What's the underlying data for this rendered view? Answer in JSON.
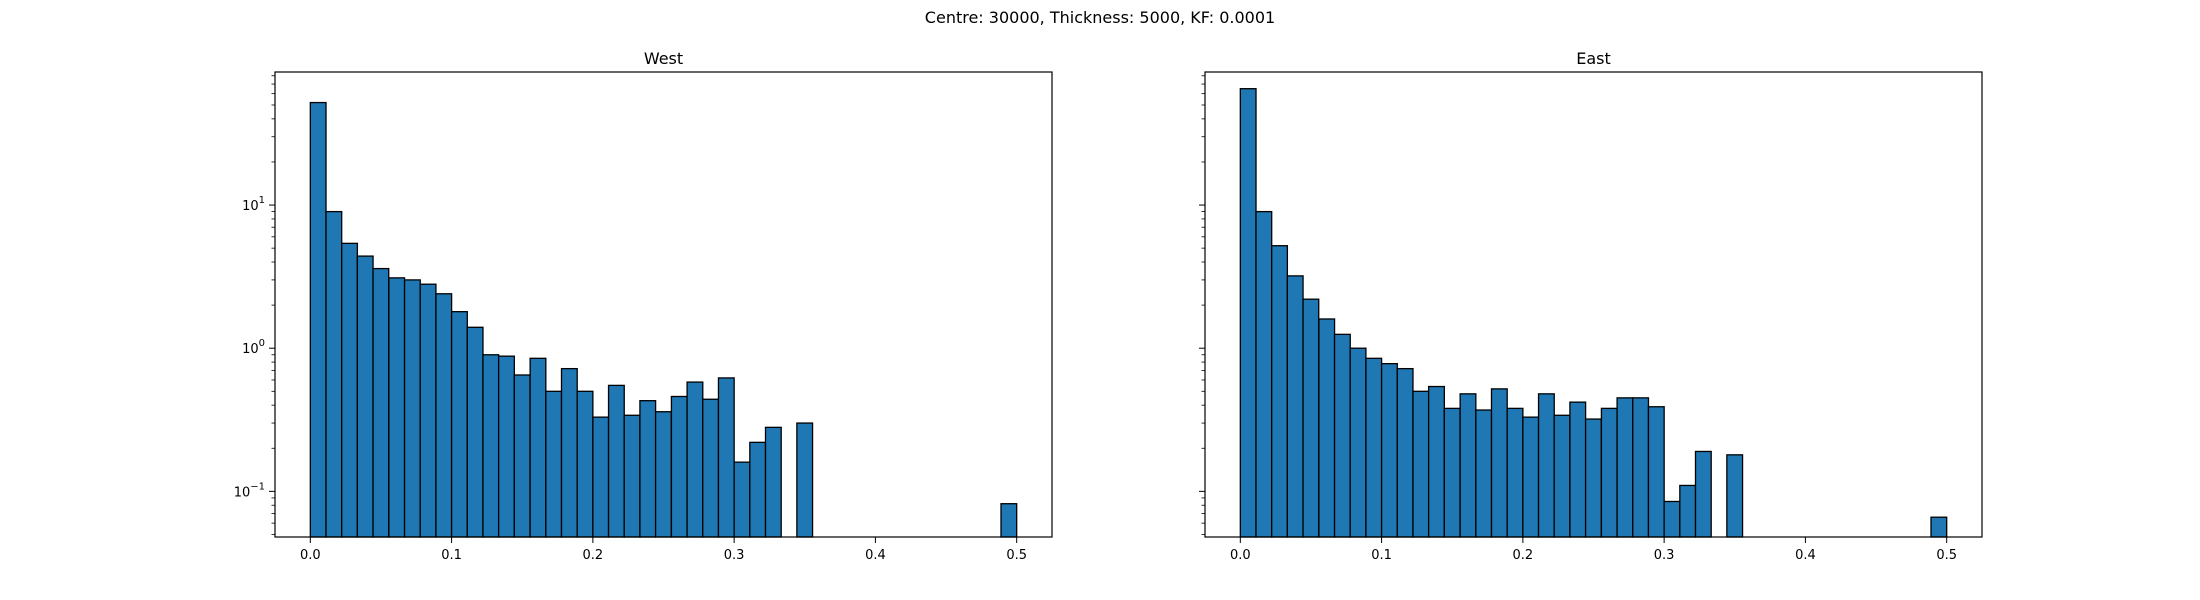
{
  "figure": {
    "suptitle": "Centre: 30000, Thickness: 5000, KF: 0.0001"
  },
  "chart_data": [
    {
      "type": "bar",
      "title": "West",
      "xlabel": "",
      "ylabel": "",
      "yscale": "log",
      "xlim": [
        -0.025,
        0.525
      ],
      "ylim": [
        0.048,
        85
      ],
      "bin_width": 0.01111,
      "x_ticks": [
        0.0,
        0.1,
        0.2,
        0.3,
        0.4,
        0.5
      ],
      "x_tick_labels": [
        "0.0",
        "0.1",
        "0.2",
        "0.3",
        "0.4",
        "0.5"
      ],
      "y_ticks": [
        0.1,
        1,
        10
      ],
      "y_tick_labels": [
        "10",
        "10",
        "10"
      ],
      "y_tick_exponents": [
        "−1",
        "0",
        "1"
      ],
      "bin_starts": [
        0.0,
        0.0111,
        0.0222,
        0.0333,
        0.0444,
        0.0556,
        0.0667,
        0.0778,
        0.0889,
        0.1,
        0.1111,
        0.1222,
        0.1333,
        0.1444,
        0.1556,
        0.1667,
        0.1778,
        0.1889,
        0.2,
        0.2111,
        0.2222,
        0.2333,
        0.2444,
        0.2556,
        0.2667,
        0.2778,
        0.2889,
        0.3,
        0.3111,
        0.3222,
        0.3333,
        0.3444,
        0.3556,
        0.3667,
        0.3778,
        0.3889,
        0.4,
        0.4111,
        0.4222,
        0.4333,
        0.4444,
        0.4556,
        0.4667,
        0.4778,
        0.4889
      ],
      "values": [
        52,
        9.0,
        5.4,
        4.4,
        3.6,
        3.1,
        3.0,
        2.8,
        2.4,
        1.8,
        1.4,
        0.9,
        0.88,
        0.65,
        0.85,
        0.5,
        0.72,
        0.5,
        0.33,
        0.55,
        0.34,
        0.43,
        0.36,
        0.46,
        0.58,
        0.44,
        0.62,
        0.16,
        0.22,
        0.28,
        0,
        0.3,
        0,
        0,
        0,
        0,
        0,
        0,
        0,
        0,
        0,
        0,
        0,
        0,
        0.082
      ],
      "bar_color": "#1f77b4",
      "edge_color": "#000000"
    },
    {
      "type": "bar",
      "title": "East",
      "xlabel": "",
      "ylabel": "",
      "yscale": "log",
      "xlim": [
        -0.025,
        0.525
      ],
      "ylim": [
        0.048,
        85
      ],
      "bin_width": 0.01111,
      "x_ticks": [
        0.0,
        0.1,
        0.2,
        0.3,
        0.4,
        0.5
      ],
      "x_tick_labels": [
        "0.0",
        "0.1",
        "0.2",
        "0.3",
        "0.4",
        "0.5"
      ],
      "y_ticks": [
        0.1,
        1,
        10
      ],
      "y_tick_labels": [],
      "y_tick_exponents": [],
      "bin_starts": [
        0.0,
        0.0111,
        0.0222,
        0.0333,
        0.0444,
        0.0556,
        0.0667,
        0.0778,
        0.0889,
        0.1,
        0.1111,
        0.1222,
        0.1333,
        0.1444,
        0.1556,
        0.1667,
        0.1778,
        0.1889,
        0.2,
        0.2111,
        0.2222,
        0.2333,
        0.2444,
        0.2556,
        0.2667,
        0.2778,
        0.2889,
        0.3,
        0.3111,
        0.3222,
        0.3333,
        0.3444,
        0.3556,
        0.3667,
        0.3778,
        0.3889,
        0.4,
        0.4111,
        0.4222,
        0.4333,
        0.4444,
        0.4556,
        0.4667,
        0.4778,
        0.4889
      ],
      "values": [
        65,
        9.0,
        5.2,
        3.2,
        2.2,
        1.6,
        1.25,
        1.0,
        0.85,
        0.78,
        0.72,
        0.5,
        0.54,
        0.38,
        0.48,
        0.37,
        0.52,
        0.38,
        0.33,
        0.48,
        0.34,
        0.42,
        0.32,
        0.38,
        0.45,
        0.45,
        0.39,
        0.085,
        0.11,
        0.19,
        0,
        0.18,
        0,
        0,
        0,
        0,
        0,
        0,
        0,
        0,
        0,
        0,
        0,
        0,
        0.066
      ],
      "bar_color": "#1f77b4",
      "edge_color": "#000000"
    }
  ]
}
